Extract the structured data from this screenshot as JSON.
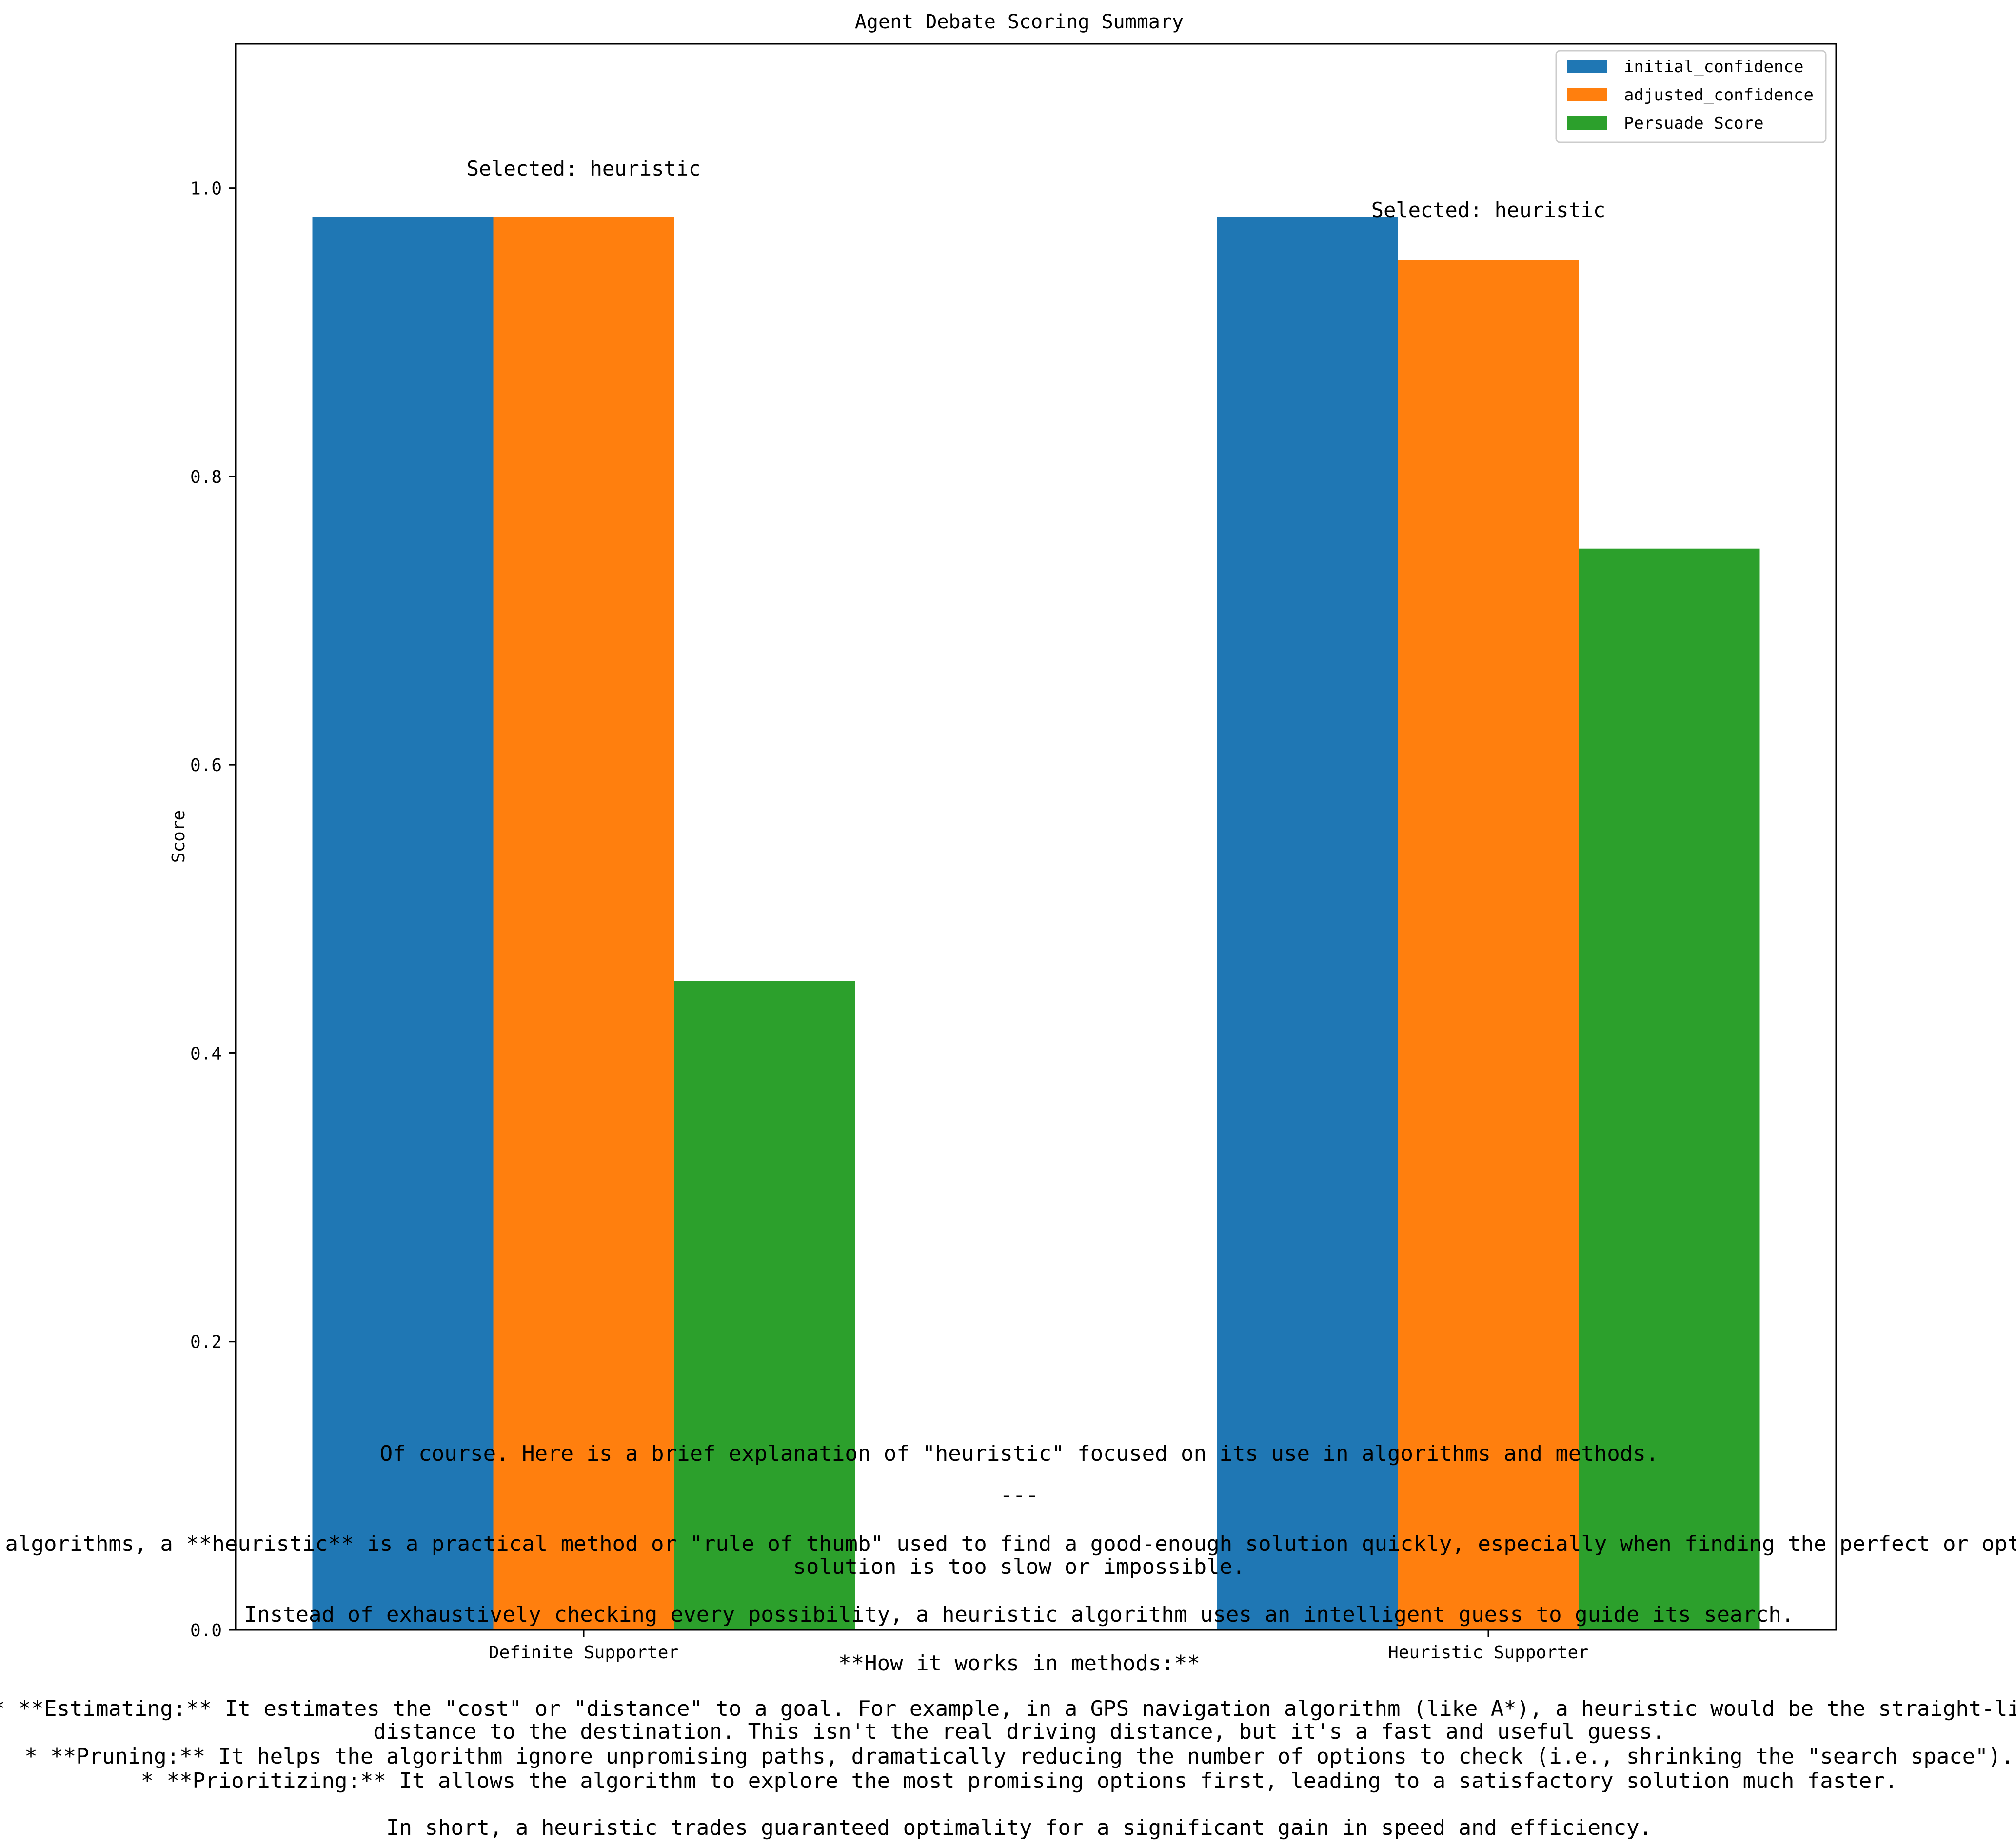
{
  "chart_data": {
    "type": "bar",
    "title": "Agent Debate Scoring Summary",
    "xlabel": "",
    "ylabel": "Score",
    "ylim": [
      0,
      1.1
    ],
    "yticks": [
      "0.0",
      "0.2",
      "0.4",
      "0.6",
      "0.8",
      "1.0"
    ],
    "categories": [
      "Definite Supporter",
      "Heuristic Supporter"
    ],
    "series": [
      {
        "name": "initial_confidence",
        "color": "#1f77b4",
        "values": [
          0.98,
          0.98
        ]
      },
      {
        "name": "adjusted_confidence",
        "color": "#ff7f0e",
        "values": [
          0.98,
          0.95
        ]
      },
      {
        "name": "Persuade Score",
        "color": "#2ca02c",
        "values": [
          0.45,
          0.75
        ]
      }
    ],
    "annotations": [
      "Selected: heuristic",
      "Selected: heuristic"
    ],
    "legend_position": "top-right",
    "grid": false
  },
  "explanation": {
    "line1": "Of course. Here is a brief explanation of \"heuristic\" focused on its use in algorithms and methods.",
    "separator": "---",
    "line2a": "In algorithms, a **heuristic** is a practical method or \"rule of thumb\" used to find a good-enough solution quickly, especially when finding the perfect or optimal",
    "line2b": "solution is too slow or impossible.",
    "line3": "Instead of exhaustively checking every possibility, a heuristic algorithm uses an intelligent guess to guide its search.",
    "heading": "**How it works in methods:**",
    "bullet1a": "*   **Estimating:** It estimates the \"cost\" or \"distance\" to a goal. For example, in a GPS navigation algorithm (like A*), a heuristic would be the straight-line",
    "bullet1b": "distance to the destination. This isn't the real driving distance, but it's a fast and useful guess.",
    "bullet2": "*   **Pruning:** It helps the algorithm ignore unpromising paths, dramatically reducing the number of options to check (i.e., shrinking the \"search space\").",
    "bullet3": "*   **Prioritizing:** It allows the algorithm to explore the most promising options first, leading to a satisfactory solution much faster.",
    "summary": "In short, a heuristic trades guaranteed optimality for a significant gain in speed and efficiency."
  }
}
